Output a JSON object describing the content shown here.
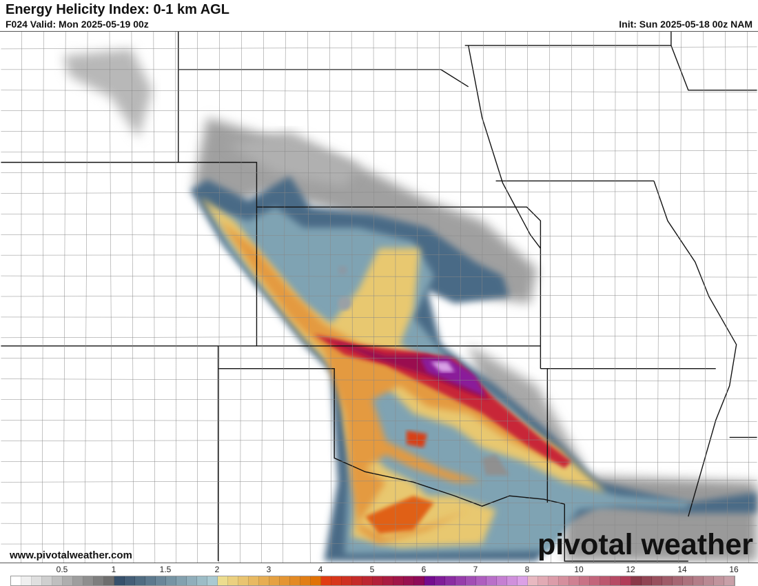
{
  "header": {
    "title": "Energy Helicity Index: 0-1 km AGL",
    "valid": "F024 Valid: Mon 2025-05-19 00z",
    "init": "Init: Sun 2025-05-18 00z NAM"
  },
  "footer": {
    "website": "www.pivotalweather.com",
    "logo": "pivotal weather"
  },
  "colorbar": {
    "ticks": [
      {
        "label": "0.5",
        "value": 0.5
      },
      {
        "label": "1",
        "value": 1
      },
      {
        "label": "1.5",
        "value": 1.5
      },
      {
        "label": "2",
        "value": 2
      },
      {
        "label": "3",
        "value": 3
      },
      {
        "label": "4",
        "value": 4
      },
      {
        "label": "5",
        "value": 5
      },
      {
        "label": "6",
        "value": 6
      },
      {
        "label": "7",
        "value": 7
      },
      {
        "label": "8",
        "value": 8
      },
      {
        "label": "10",
        "value": 10
      },
      {
        "label": "12",
        "value": 12
      },
      {
        "label": "14",
        "value": 14
      },
      {
        "label": "16",
        "value": 16
      }
    ],
    "segments": [
      {
        "range": [
          0,
          1
        ],
        "from": "#ffffff",
        "to": "#6e6e6e",
        "cells": 10
      },
      {
        "range": [
          1,
          2
        ],
        "from": "#37516c",
        "to": "#a9c9d1",
        "cells": 10
      },
      {
        "range": [
          2,
          4
        ],
        "from": "#ecdc8e",
        "to": "#e07206",
        "cells": 10
      },
      {
        "range": [
          4,
          6
        ],
        "from": "#e03c12",
        "to": "#8e0a58",
        "cells": 10
      },
      {
        "range": [
          6,
          8
        ],
        "from": "#740c8e",
        "to": "#dca0e6",
        "cells": 10
      },
      {
        "range": [
          8,
          12
        ],
        "from": "#e8b8c0",
        "to": "#b03c58",
        "cells": 10
      },
      {
        "range": [
          12,
          16
        ],
        "from": "#8a3848",
        "to": "#c8a0a8",
        "cells": 10
      }
    ]
  }
}
